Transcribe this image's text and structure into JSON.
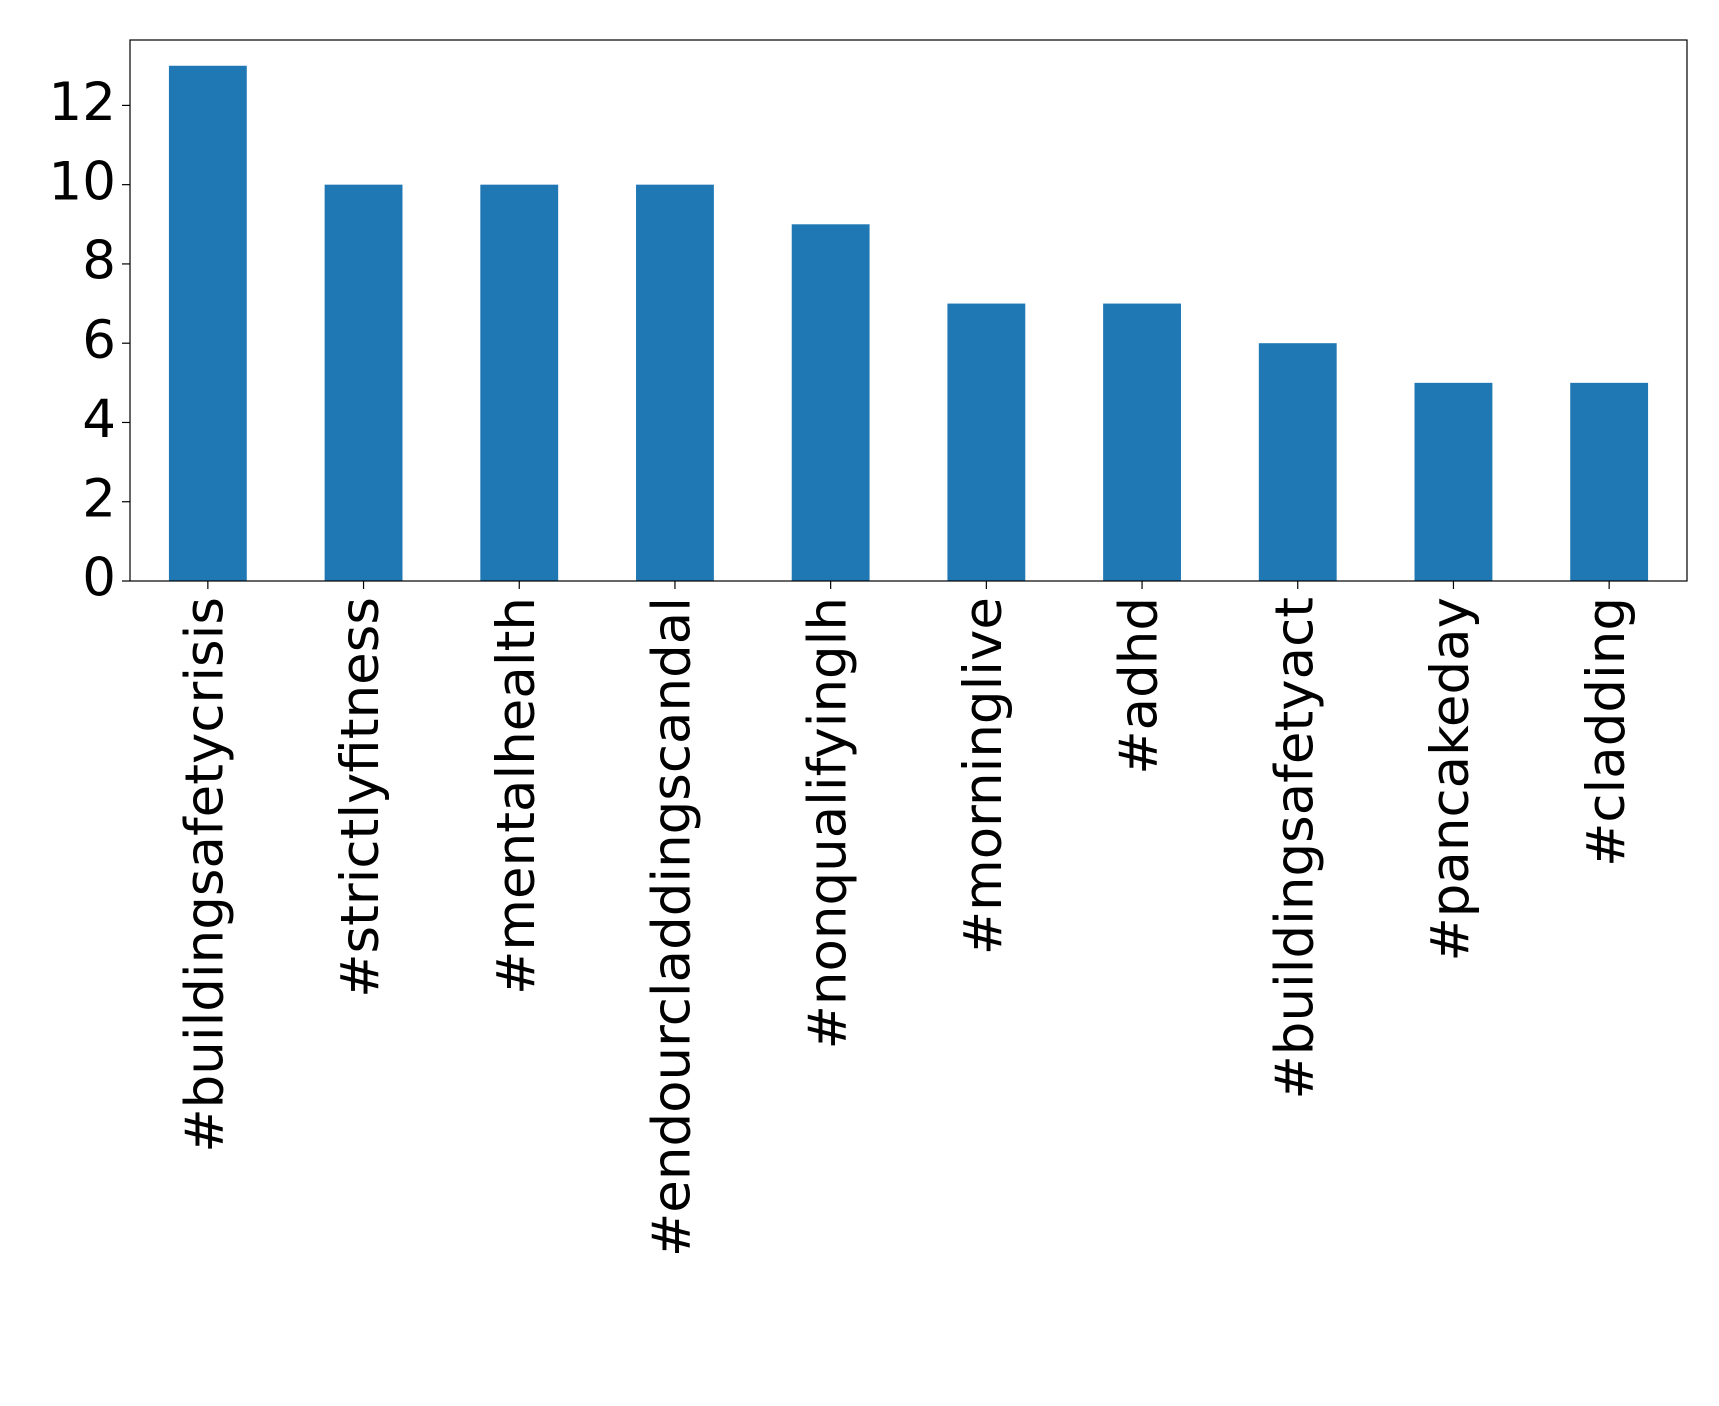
{
  "chart_data": {
    "type": "bar",
    "categories": [
      "#buildingsafetycrisis",
      "#strictlyfitness",
      "#mentalhealth",
      "#endourcladdingscandal",
      "#nonqualifyinglh",
      "#morninglive",
      "#adhd",
      "#buildingsafetyact",
      "#pancakeday",
      "#cladding"
    ],
    "values": [
      13,
      10,
      10,
      10,
      9,
      7,
      7,
      6,
      5,
      5
    ],
    "color": "#1f77b4",
    "ylim": [
      0,
      13.65
    ],
    "yticks": [
      0,
      2,
      4,
      6,
      8,
      10,
      12
    ],
    "grid": false
  }
}
